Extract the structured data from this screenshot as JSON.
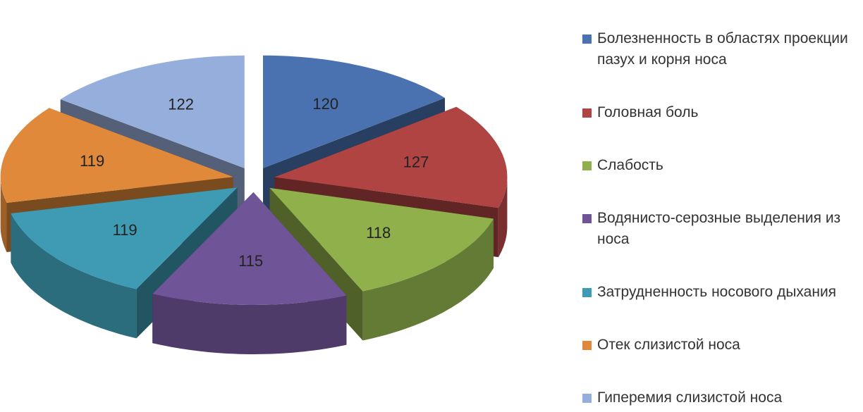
{
  "chart_data": {
    "type": "pie",
    "categories": [
      "Болезненность в областях проекции пазух и корня носа",
      "Головная боль",
      "Слабость",
      "Водянисто-серозные выделения из носа",
      "Затрудненность носового дыхания",
      "Отек слизистой носа",
      "Гиперемия слизистой носа"
    ],
    "values": [
      120,
      127,
      118,
      115,
      119,
      119,
      122
    ],
    "colors": [
      "#4a72b0",
      "#b04443",
      "#8fb04b",
      "#6f5497",
      "#3e9bb3",
      "#e0893a",
      "#96aedb"
    ],
    "legend": "right"
  }
}
